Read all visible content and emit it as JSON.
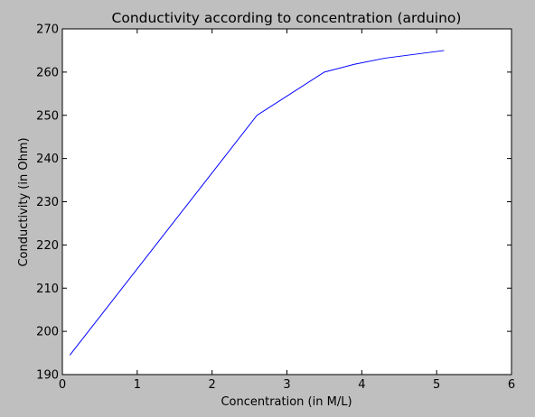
{
  "chart_data": {
    "type": "line",
    "title": "Conductivity according to concentration (arduino)",
    "xlabel": "Concentration (in M/L)",
    "ylabel": "Conductivity (in Ohm)",
    "xlim": [
      0,
      6
    ],
    "ylim": [
      190,
      270
    ],
    "xticks": [
      0,
      1,
      2,
      3,
      4,
      5,
      6
    ],
    "yticks": [
      190,
      200,
      210,
      220,
      230,
      240,
      250,
      260,
      270
    ],
    "grid": false,
    "series": [
      {
        "name": "conductivity",
        "color": "#0000ff",
        "x": [
          0.1,
          2.6,
          3.5,
          3.9,
          4.3,
          5.1
        ],
        "y": [
          194.5,
          250.0,
          260.0,
          261.8,
          263.2,
          265.0
        ]
      }
    ]
  },
  "colors": {
    "figure_background": "#bfbfbf",
    "plot_background": "#ffffff",
    "axes": "#000000"
  }
}
